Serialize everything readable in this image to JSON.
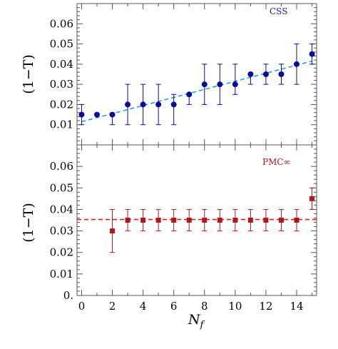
{
  "chart_data": [
    {
      "type": "scatter",
      "panel": "top",
      "legend": "CSS",
      "ylabel": "(1−T)",
      "xlabel": "",
      "xlim": [
        -0.3,
        15.3
      ],
      "ylim": [
        0,
        0.07
      ],
      "yticks": [
        "0.01",
        "0.02",
        "0.03",
        "0.04",
        "0.05",
        "0.06"
      ],
      "grid": false,
      "legend_position": "top-right",
      "series": [
        {
          "marker": "circle",
          "color": "#0a0a9a",
          "points": [
            {
              "x": 0,
              "y": 0.015,
              "err_low": 0.01,
              "err_high": 0.02
            },
            {
              "x": 1,
              "y": 0.015,
              "err_low": 0.015,
              "err_high": 0.015
            },
            {
              "x": 2,
              "y": 0.015,
              "err_low": 0.01,
              "err_high": 0.015
            },
            {
              "x": 3,
              "y": 0.02,
              "err_low": 0.01,
              "err_high": 0.03
            },
            {
              "x": 4,
              "y": 0.02,
              "err_low": 0.01,
              "err_high": 0.03
            },
            {
              "x": 5,
              "y": 0.02,
              "err_low": 0.01,
              "err_high": 0.03
            },
            {
              "x": 6,
              "y": 0.02,
              "err_low": 0.01,
              "err_high": 0.025
            },
            {
              "x": 7,
              "y": 0.025,
              "err_low": 0.02,
              "err_high": 0.025
            },
            {
              "x": 8,
              "y": 0.03,
              "err_low": 0.02,
              "err_high": 0.04
            },
            {
              "x": 9,
              "y": 0.03,
              "err_low": 0.02,
              "err_high": 0.04
            },
            {
              "x": 10,
              "y": 0.03,
              "err_low": 0.025,
              "err_high": 0.04
            },
            {
              "x": 11,
              "y": 0.035,
              "err_low": 0.03,
              "err_high": 0.035
            },
            {
              "x": 12,
              "y": 0.035,
              "err_low": 0.03,
              "err_high": 0.04
            },
            {
              "x": 13,
              "y": 0.035,
              "err_low": 0.03,
              "err_high": 0.04
            },
            {
              "x": 14,
              "y": 0.04,
              "err_low": 0.03,
              "err_high": 0.05
            },
            {
              "x": 15,
              "y": 0.045,
              "err_low": 0.04,
              "err_high": 0.05
            }
          ]
        }
      ],
      "fit_line": {
        "style": "dashed",
        "color": "#2a9be0",
        "x": [
          0,
          15
        ],
        "y": [
          0.0115,
          0.0415
        ]
      }
    },
    {
      "type": "scatter",
      "panel": "bottom",
      "legend": "PMC∞",
      "ylabel": "(1−T)",
      "xlabel": "N",
      "xlabel_sub": "f",
      "xlim": [
        -0.3,
        15.3
      ],
      "ylim": [
        0,
        0.07
      ],
      "yticks": [
        "0.",
        "0.01",
        "0.02",
        "0.03",
        "0.04",
        "0.05",
        "0.06"
      ],
      "xticks": [
        "0",
        "2",
        "4",
        "6",
        "8",
        "10",
        "12",
        "14"
      ],
      "grid": false,
      "legend_position": "top-right",
      "series": [
        {
          "marker": "square",
          "color": "#b3161b",
          "points": [
            {
              "x": 2,
              "y": 0.03,
              "err_low": 0.02,
              "err_high": 0.04
            },
            {
              "x": 3,
              "y": 0.035,
              "err_low": 0.03,
              "err_high": 0.04
            },
            {
              "x": 4,
              "y": 0.035,
              "err_low": 0.03,
              "err_high": 0.04
            },
            {
              "x": 5,
              "y": 0.035,
              "err_low": 0.03,
              "err_high": 0.04
            },
            {
              "x": 6,
              "y": 0.035,
              "err_low": 0.03,
              "err_high": 0.04
            },
            {
              "x": 7,
              "y": 0.035,
              "err_low": 0.03,
              "err_high": 0.04
            },
            {
              "x": 8,
              "y": 0.035,
              "err_low": 0.03,
              "err_high": 0.04
            },
            {
              "x": 9,
              "y": 0.035,
              "err_low": 0.03,
              "err_high": 0.04
            },
            {
              "x": 10,
              "y": 0.035,
              "err_low": 0.03,
              "err_high": 0.04
            },
            {
              "x": 11,
              "y": 0.035,
              "err_low": 0.03,
              "err_high": 0.04
            },
            {
              "x": 12,
              "y": 0.035,
              "err_low": 0.03,
              "err_high": 0.04
            },
            {
              "x": 13,
              "y": 0.035,
              "err_low": 0.03,
              "err_high": 0.04
            },
            {
              "x": 14,
              "y": 0.035,
              "err_low": 0.03,
              "err_high": 0.04
            },
            {
              "x": 15,
              "y": 0.045,
              "err_low": 0.04,
              "err_high": 0.05
            }
          ]
        }
      ],
      "fit_line": {
        "style": "dashed",
        "color": "#d42020",
        "x": [
          -0.3,
          15.3
        ],
        "y": [
          0.0353,
          0.0353
        ]
      }
    }
  ]
}
